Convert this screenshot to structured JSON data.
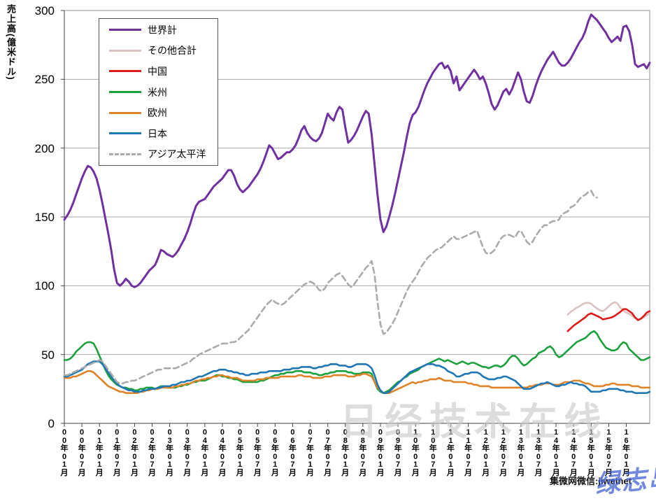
{
  "y_axis": {
    "title": "売上高(億米ドル)",
    "ticks": [
      0,
      50,
      100,
      150,
      200,
      250,
      300
    ]
  },
  "x_axis": {
    "labels": [
      "00年01月",
      "00年07月",
      "01年01月",
      "01年07月",
      "02年01月",
      "02年07月",
      "03年01月",
      "03年07月",
      "04年01月",
      "04年07月",
      "05年01月",
      "05年07月",
      "06年01月",
      "06年07月",
      "07年01月",
      "07年07月",
      "08年01月",
      "08年07月",
      "09年01月",
      "09年07月",
      "10年01月",
      "10年07月",
      "11年01月",
      "11年07月",
      "12年01月",
      "12年07月",
      "13年01月",
      "13年07月",
      "14年01月",
      "14年07月",
      "15年01月",
      "15年07月",
      "16年01月"
    ],
    "label_every_n_months": 6
  },
  "legend": [
    {
      "label": "世界計",
      "color": "#7030A0",
      "dashed": false
    },
    {
      "label": "その他合計",
      "color": "#DCC3C3",
      "dashed": false
    },
    {
      "label": "中国",
      "color": "#DF1A1A",
      "dashed": false
    },
    {
      "label": "米州",
      "color": "#1AA03C",
      "dashed": false
    },
    {
      "label": "欧州",
      "color": "#DE8327",
      "dashed": false
    },
    {
      "label": "日本",
      "color": "#1F77B4",
      "dashed": false
    },
    {
      "label": "アジア太平洋",
      "color": "#ABABAB",
      "dashed": true
    }
  ],
  "watermarks": {
    "center": "日经技术在线",
    "bottom_right_black": "集微网微信:jiweinet",
    "bottom_right_blue": "绿志岛"
  },
  "chart_data": {
    "type": "line",
    "title": "",
    "xlabel": "",
    "ylabel": "売上高(億米ドル)",
    "ylim": [
      0,
      300
    ],
    "grid": true,
    "legend_position": "upper-left-inside",
    "x_start": "2000-01",
    "x_freq": "monthly",
    "n_months": 201,
    "series": [
      {
        "name": "世界計",
        "color": "#7030A0",
        "dashed": false,
        "width": 3,
        "start_index": 0,
        "values": [
          148,
          151,
          155,
          160,
          166,
          172,
          178,
          183,
          187,
          186,
          183,
          178,
          170,
          160,
          149,
          138,
          126,
          112,
          102,
          100,
          102,
          105,
          103,
          100,
          99,
          100,
          102,
          105,
          108,
          111,
          113,
          115,
          120,
          126,
          125,
          123,
          122,
          121,
          123,
          126,
          130,
          134,
          139,
          145,
          152,
          158,
          161,
          162,
          163,
          166,
          169,
          172,
          174,
          176,
          178,
          181,
          184,
          184,
          180,
          174,
          170,
          168,
          170,
          172,
          175,
          178,
          181,
          185,
          190,
          196,
          202,
          200,
          196,
          192,
          193,
          195,
          197,
          197,
          199,
          202,
          207,
          213,
          216,
          211,
          208,
          206,
          205,
          207,
          211,
          218,
          225,
          222,
          220,
          226,
          230,
          228,
          215,
          204,
          206,
          209,
          213,
          218,
          223,
          227,
          225,
          210,
          188,
          166,
          148,
          139,
          143,
          150,
          158,
          167,
          177,
          187,
          197,
          208,
          218,
          224,
          226,
          230,
          236,
          242,
          247,
          251,
          255,
          258,
          261,
          262,
          258,
          260,
          256,
          247,
          252,
          242,
          245,
          248,
          251,
          254,
          257,
          254,
          250,
          252,
          247,
          240,
          232,
          228,
          231,
          236,
          241,
          243,
          239,
          243,
          249,
          255,
          250,
          241,
          234,
          233,
          238,
          245,
          251,
          256,
          260,
          264,
          267,
          270,
          266,
          262,
          260,
          260,
          262,
          265,
          269,
          273,
          277,
          280,
          285,
          292,
          297,
          295,
          293,
          290,
          287,
          284,
          280,
          277,
          279,
          281,
          278,
          288,
          289,
          285,
          275,
          261,
          259,
          260,
          261,
          258,
          262
        ]
      },
      {
        "name": "その他合計",
        "color": "#DCC3C3",
        "dashed": false,
        "width": 2.6,
        "start_index": 172,
        "values": [
          79,
          81,
          82.5,
          84,
          85,
          86.5,
          87.5,
          87.5,
          87,
          85,
          83.5,
          82,
          81.5,
          83,
          85,
          87,
          88,
          87,
          84,
          82,
          80.5,
          79.5,
          78,
          76.5,
          75.5,
          76,
          77,
          78.5,
          80
        ]
      },
      {
        "name": "中国",
        "color": "#DF1A1A",
        "dashed": false,
        "width": 2.6,
        "start_index": 172,
        "values": [
          67,
          69,
          71,
          72.5,
          74,
          75.5,
          77,
          79,
          80,
          79,
          78,
          77,
          75.5,
          76,
          76.5,
          77,
          78,
          79.5,
          81,
          83,
          83,
          81.5,
          80,
          77,
          75,
          76,
          78,
          80.5,
          81.5
        ]
      },
      {
        "name": "米州",
        "color": "#1AA03C",
        "dashed": false,
        "width": 2.6,
        "start_index": 0,
        "values": [
          46,
          46,
          47,
          49,
          52,
          54,
          56,
          58,
          59,
          59,
          58,
          54,
          49,
          44,
          39,
          35,
          32,
          30,
          28,
          27,
          26,
          26,
          25,
          25,
          24,
          24,
          25,
          25,
          26,
          26,
          26,
          25,
          26,
          27,
          27,
          26,
          26,
          26,
          26,
          27,
          27,
          28,
          28,
          29,
          30,
          30,
          31,
          31,
          31,
          32,
          33,
          34,
          35,
          35,
          34,
          34,
          33,
          33,
          32,
          32,
          31,
          30,
          30,
          30,
          30,
          30,
          30,
          31,
          31,
          32,
          33,
          34,
          35,
          35,
          36,
          36,
          37,
          37,
          37,
          38,
          38,
          38,
          37,
          37,
          37,
          36,
          36,
          35,
          35,
          36,
          36,
          37,
          37,
          38,
          38,
          38,
          38,
          37,
          37,
          36,
          36,
          36,
          37,
          37,
          37,
          36,
          30,
          25,
          23,
          22,
          23,
          24,
          26,
          28,
          30,
          31,
          33,
          34,
          36,
          37,
          38,
          39,
          41,
          42,
          43,
          44,
          45,
          46,
          47,
          46,
          45,
          46,
          45,
          44,
          43,
          44,
          45,
          44,
          43,
          44,
          44,
          43,
          42,
          41,
          41,
          40,
          41,
          42,
          42,
          41,
          42,
          44,
          47,
          49,
          49,
          47,
          44,
          42,
          43,
          45,
          47,
          48,
          51,
          52,
          53,
          55,
          56,
          54,
          50,
          48,
          49,
          51,
          53,
          55,
          57,
          59,
          60,
          61,
          62,
          64,
          66,
          67,
          65,
          61,
          58,
          55,
          54,
          53,
          53,
          54,
          57,
          59,
          58,
          54,
          52,
          50,
          48,
          46,
          46,
          47,
          48
        ]
      },
      {
        "name": "欧州",
        "color": "#DE8327",
        "dashed": false,
        "width": 2.6,
        "start_index": 0,
        "values": [
          33,
          33,
          33,
          34,
          34,
          35,
          36,
          37,
          38,
          38,
          37,
          35,
          33,
          31,
          29,
          27,
          26,
          25,
          24,
          23,
          23,
          22,
          22,
          22,
          22,
          22,
          23,
          23,
          24,
          24,
          25,
          25,
          25,
          26,
          26,
          26,
          26,
          26,
          27,
          27,
          28,
          28,
          29,
          29,
          30,
          31,
          31,
          32,
          32,
          33,
          33,
          34,
          34,
          35,
          35,
          34,
          34,
          33,
          33,
          33,
          32,
          31,
          31,
          31,
          31,
          31,
          32,
          32,
          32,
          33,
          33,
          33,
          33,
          33,
          34,
          34,
          34,
          34,
          34,
          34,
          35,
          35,
          34,
          34,
          34,
          33,
          33,
          33,
          33,
          34,
          34,
          34,
          35,
          35,
          35,
          35,
          35,
          34,
          34,
          34,
          35,
          35,
          36,
          36,
          35,
          34,
          30,
          26,
          24,
          22,
          22,
          22,
          23,
          24,
          25,
          26,
          27,
          28,
          29,
          30,
          29,
          30,
          30,
          31,
          31,
          32,
          32,
          32,
          33,
          32,
          31,
          31,
          31,
          30,
          30,
          30,
          30,
          30,
          29,
          29,
          28,
          28,
          27,
          27,
          27,
          27,
          26,
          26,
          26,
          26,
          26,
          26,
          26,
          26,
          26,
          26,
          26,
          26,
          26,
          27,
          27,
          28,
          28,
          28,
          29,
          29,
          29,
          28,
          28,
          28,
          29,
          30,
          30,
          30,
          31,
          31,
          31,
          30,
          29,
          29,
          28,
          27,
          27,
          27,
          27,
          28,
          28,
          29,
          29,
          28,
          28,
          28,
          28,
          28,
          27,
          27,
          27,
          26,
          26,
          26,
          26
        ]
      },
      {
        "name": "日本",
        "color": "#1F77B4",
        "dashed": false,
        "width": 2.6,
        "start_index": 0,
        "values": [
          34,
          34,
          35,
          36,
          37,
          38,
          39,
          41,
          43,
          44,
          45,
          45,
          45,
          43,
          40,
          37,
          34,
          31,
          29,
          27,
          26,
          25,
          24,
          24,
          23,
          23,
          23,
          24,
          24,
          25,
          25,
          25,
          26,
          26,
          27,
          27,
          27,
          28,
          28,
          29,
          30,
          30,
          31,
          31,
          32,
          33,
          34,
          34,
          35,
          36,
          37,
          38,
          38,
          39,
          39,
          39,
          38,
          38,
          37,
          37,
          36,
          36,
          35,
          35,
          36,
          36,
          36,
          37,
          37,
          37,
          38,
          38,
          38,
          38,
          38,
          39,
          39,
          39,
          40,
          40,
          40,
          41,
          41,
          41,
          41,
          40,
          40,
          41,
          41,
          42,
          42,
          43,
          43,
          43,
          42,
          42,
          42,
          41,
          41,
          42,
          43,
          43,
          43,
          43,
          42,
          40,
          35,
          28,
          24,
          22,
          22,
          23,
          25,
          27,
          29,
          31,
          33,
          35,
          37,
          38,
          39,
          40,
          41,
          42,
          43,
          43,
          43,
          42,
          42,
          41,
          40,
          38,
          37,
          36,
          34,
          34,
          35,
          36,
          36,
          37,
          37,
          37,
          36,
          34,
          33,
          32,
          32,
          32,
          33,
          33,
          34,
          34,
          33,
          32,
          31,
          29,
          27,
          25,
          25,
          25,
          26,
          27,
          28,
          29,
          29,
          30,
          29,
          28,
          27,
          27,
          28,
          28,
          29,
          30,
          29,
          29,
          28,
          28,
          27,
          25,
          23,
          23,
          23,
          23,
          24,
          24,
          25,
          25,
          25,
          25,
          24,
          24,
          23,
          23,
          23,
          22,
          22,
          22,
          22,
          22,
          23
        ]
      },
      {
        "name": "アジア太平洋",
        "color": "#ABABAB",
        "dashed": true,
        "width": 2.6,
        "start_index": 0,
        "values": [
          35,
          35,
          36,
          37,
          38,
          39,
          40,
          41,
          42,
          43,
          44,
          45,
          46,
          45,
          42,
          39,
          36,
          33,
          30,
          29,
          29,
          30,
          30,
          31,
          31,
          32,
          33,
          34,
          35,
          36,
          37,
          38,
          39,
          39,
          40,
          40,
          40,
          40,
          40,
          41,
          42,
          43,
          44,
          45,
          47,
          48,
          50,
          51,
          52,
          53,
          54,
          55,
          56,
          57,
          58,
          58,
          58,
          59,
          59,
          60,
          62,
          64,
          66,
          68,
          71,
          74,
          77,
          80,
          83,
          86,
          88,
          90,
          88,
          87,
          86,
          87,
          89,
          91,
          93,
          95,
          97,
          99,
          101,
          102,
          103,
          102,
          100,
          97,
          96,
          98,
          102,
          104,
          106,
          108,
          109,
          107,
          104,
          101,
          99,
          101,
          104,
          107,
          110,
          113,
          115,
          118,
          108,
          88,
          72,
          65,
          66,
          69,
          72,
          76,
          81,
          86,
          91,
          96,
          100,
          103,
          106,
          110,
          114,
          117,
          120,
          122,
          124,
          126,
          127,
          128,
          130,
          132,
          134,
          136,
          134,
          134,
          135,
          136,
          137,
          138,
          139,
          140,
          134,
          128,
          124,
          123,
          124,
          126,
          130,
          134,
          136,
          137,
          137,
          136,
          135,
          139,
          140,
          136,
          132,
          130,
          132,
          136,
          139,
          142,
          144,
          144,
          146,
          147,
          147,
          148,
          152,
          153,
          154,
          157,
          158,
          160,
          163,
          165,
          166,
          168,
          169,
          165,
          164
        ]
      }
    ]
  }
}
